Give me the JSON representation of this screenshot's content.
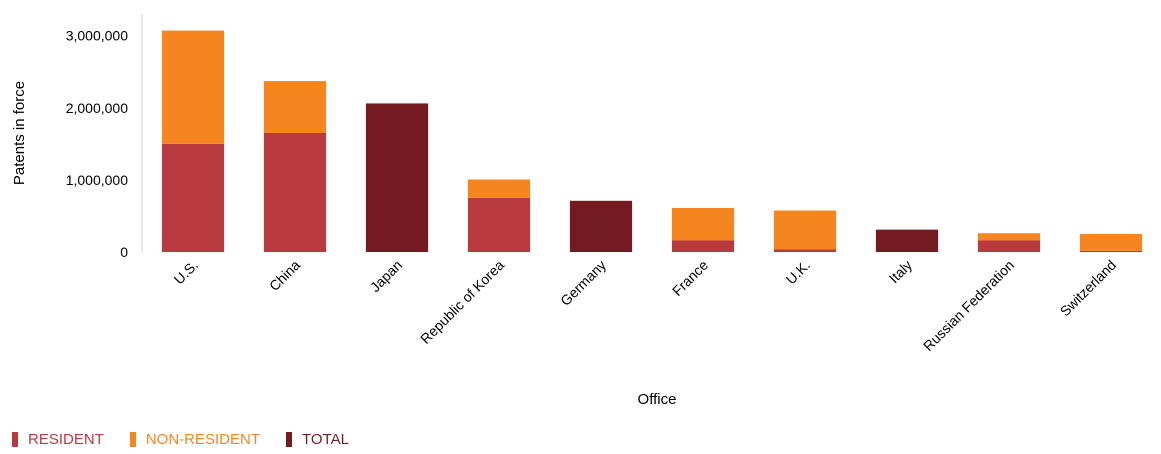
{
  "chart_data": {
    "type": "bar",
    "stacked": true,
    "xlabel": "Office",
    "ylabel": "Patents in force",
    "ylim": [
      0,
      3300000
    ],
    "yticks": [
      0,
      1000000,
      2000000,
      3000000
    ],
    "ytick_labels": [
      "0",
      "1,000,000",
      "2,000,000",
      "3,000,000"
    ],
    "grid": false,
    "legend_position": "bottom-left",
    "categories": [
      "U.S.",
      "China",
      "Japan",
      "Republic of Korea",
      "Germany",
      "France",
      "U.K.",
      "Italy",
      "Russian Federation",
      "Switzerland"
    ],
    "series": [
      {
        "name": "RESIDENT",
        "color": "#b83a3f",
        "values": [
          1500000,
          1650000,
          0,
          750000,
          0,
          160000,
          35000,
          0,
          160000,
          15000
        ]
      },
      {
        "name": "NON-RESIDENT",
        "color": "#f5861f",
        "values": [
          1570000,
          720000,
          0,
          255000,
          0,
          450000,
          540000,
          0,
          100000,
          235000
        ]
      },
      {
        "name": "TOTAL",
        "color": "#731b20",
        "values": [
          0,
          0,
          2060000,
          0,
          710000,
          0,
          0,
          310000,
          0,
          0
        ]
      }
    ]
  }
}
